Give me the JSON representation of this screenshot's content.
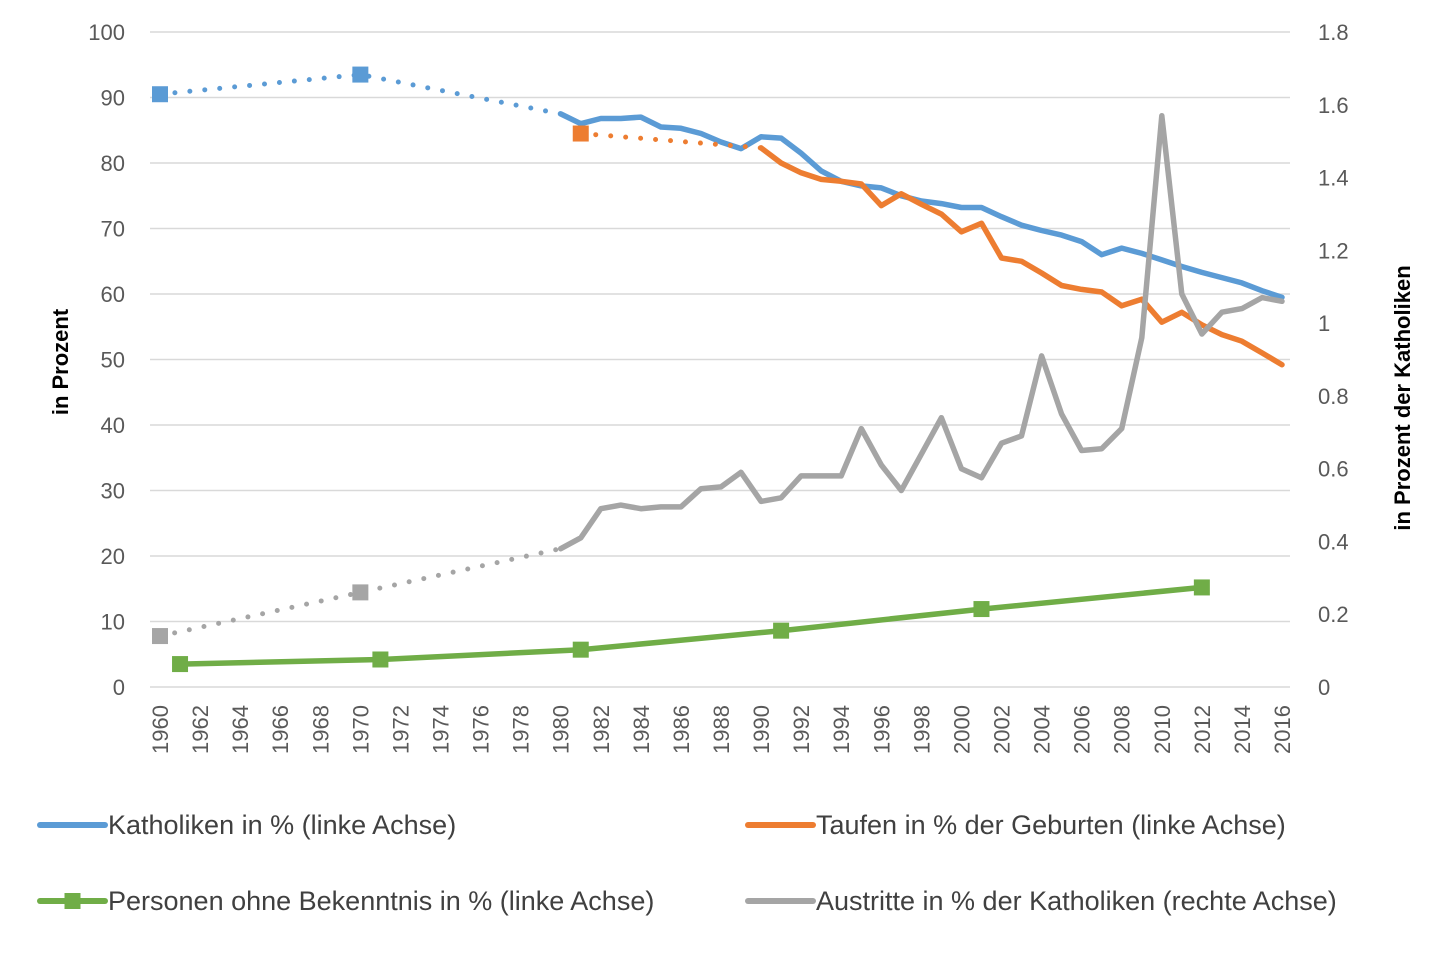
{
  "chart_data": {
    "type": "line",
    "y_left": {
      "label": "in Prozent",
      "range": [
        0,
        100
      ],
      "ticks": [
        0,
        10,
        20,
        30,
        40,
        50,
        60,
        70,
        80,
        90,
        100
      ]
    },
    "y_right": {
      "label": "in Prozent der Katholiken",
      "range": [
        0,
        1.8
      ],
      "ticks": [
        0,
        0.2,
        0.4,
        0.6,
        0.8,
        1,
        1.2,
        1.4,
        1.6,
        1.8
      ],
      "tick_labels": [
        "0",
        "0.2",
        "0.4",
        "0.6",
        "0.8",
        "1",
        "1.2",
        "1.4",
        "1.6",
        "1.8"
      ]
    },
    "x_axis": {
      "range": [
        1960,
        2016
      ],
      "ticks": [
        1960,
        1962,
        1964,
        1966,
        1968,
        1970,
        1972,
        1974,
        1976,
        1978,
        1980,
        1982,
        1984,
        1986,
        1988,
        1990,
        1992,
        1994,
        1996,
        1998,
        2000,
        2002,
        2004,
        2006,
        2008,
        2010,
        2012,
        2014,
        2016
      ]
    },
    "grid": true,
    "legend_position": "bottom",
    "series": [
      {
        "name": "Katholiken in % (linke Achse)",
        "axis": "left",
        "color": "#5b9bd5",
        "style": "line",
        "markers": [
          [
            1960,
            90.5
          ],
          [
            1970,
            93.5
          ]
        ],
        "dotted": [
          [
            1960,
            90.5
          ],
          [
            1970,
            93.5
          ],
          [
            1980,
            87.5
          ]
        ],
        "solid": [
          [
            1980,
            87.5
          ],
          [
            1981,
            86
          ],
          [
            1982,
            86.8
          ],
          [
            1983,
            86.8
          ],
          [
            1984,
            87
          ],
          [
            1985,
            85.5
          ],
          [
            1986,
            85.3
          ],
          [
            1987,
            84.5
          ],
          [
            1988,
            83.2
          ],
          [
            1989,
            82.2
          ],
          [
            1990,
            84
          ],
          [
            1991,
            83.8
          ],
          [
            1992,
            81.5
          ],
          [
            1993,
            78.8
          ],
          [
            1994,
            77.2
          ],
          [
            1995,
            76.5
          ],
          [
            1996,
            76.2
          ],
          [
            1997,
            75
          ],
          [
            1998,
            74.2
          ],
          [
            1999,
            73.8
          ],
          [
            2000,
            73.2
          ],
          [
            2001,
            73.2
          ],
          [
            2002,
            71.8
          ],
          [
            2003,
            70.5
          ],
          [
            2004,
            69.7
          ],
          [
            2005,
            69
          ],
          [
            2006,
            68
          ],
          [
            2007,
            66
          ],
          [
            2008,
            67
          ],
          [
            2009,
            66.2
          ],
          [
            2010,
            65.2
          ],
          [
            2011,
            64.2
          ],
          [
            2012,
            63.3
          ],
          [
            2013,
            62.5
          ],
          [
            2014,
            61.7
          ],
          [
            2015,
            60.5
          ],
          [
            2016,
            59.5
          ]
        ]
      },
      {
        "name": "Taufen in % der Geburten (linke Achse)",
        "axis": "left",
        "color": "#ed7d31",
        "style": "line",
        "markers": [
          [
            1981,
            84.5
          ]
        ],
        "dotted": [
          [
            1981,
            84.5
          ],
          [
            1990,
            82.3
          ]
        ],
        "solid": [
          [
            1990,
            82.3
          ],
          [
            1991,
            80
          ],
          [
            1992,
            78.5
          ],
          [
            1993,
            77.5
          ],
          [
            1994,
            77.2
          ],
          [
            1995,
            76.8
          ],
          [
            1996,
            73.5
          ],
          [
            1997,
            75.3
          ],
          [
            1998,
            73.7
          ],
          [
            1999,
            72.2
          ],
          [
            2000,
            69.5
          ],
          [
            2001,
            70.8
          ],
          [
            2002,
            65.5
          ],
          [
            2003,
            65
          ],
          [
            2004,
            63.2
          ],
          [
            2005,
            61.3
          ],
          [
            2006,
            60.7
          ],
          [
            2007,
            60.3
          ],
          [
            2008,
            58.2
          ],
          [
            2009,
            59.2
          ],
          [
            2010,
            55.7
          ],
          [
            2011,
            57.2
          ],
          [
            2012,
            55.3
          ],
          [
            2013,
            53.8
          ],
          [
            2014,
            52.8
          ],
          [
            2015,
            51
          ],
          [
            2016,
            49.2
          ]
        ]
      },
      {
        "name": "Personen ohne Bekenntnis in % (linke Achse)",
        "axis": "left",
        "color": "#70ad47",
        "style": "line-marker",
        "markers": [
          [
            1961,
            3.5
          ],
          [
            1971,
            4.2
          ],
          [
            1981,
            5.7
          ],
          [
            1991,
            8.6
          ],
          [
            2001,
            11.9
          ],
          [
            2012,
            15.2
          ]
        ],
        "dotted": [],
        "solid": [
          [
            1961,
            3.5
          ],
          [
            1971,
            4.2
          ],
          [
            1981,
            5.7
          ],
          [
            1991,
            8.6
          ],
          [
            2001,
            11.9
          ],
          [
            2012,
            15.2
          ]
        ]
      },
      {
        "name": "Austritte in % der Katholiken (rechte Achse)",
        "axis": "right",
        "color": "#a5a5a5",
        "style": "line",
        "markers": [
          [
            1960,
            0.14
          ],
          [
            1970,
            0.26
          ]
        ],
        "dotted": [
          [
            1960,
            0.14
          ],
          [
            1970,
            0.26
          ],
          [
            1980,
            0.38
          ]
        ],
        "solid": [
          [
            1980,
            0.38
          ],
          [
            1981,
            0.41
          ],
          [
            1982,
            0.49
          ],
          [
            1983,
            0.5
          ],
          [
            1984,
            0.49
          ],
          [
            1985,
            0.495
          ],
          [
            1986,
            0.495
          ],
          [
            1987,
            0.545
          ],
          [
            1988,
            0.55
          ],
          [
            1989,
            0.59
          ],
          [
            1990,
            0.51
          ],
          [
            1991,
            0.52
          ],
          [
            1992,
            0.58
          ],
          [
            1993,
            0.58
          ],
          [
            1994,
            0.58
          ],
          [
            1995,
            0.71
          ],
          [
            1996,
            0.61
          ],
          [
            1997,
            0.54
          ],
          [
            1998,
            0.64
          ],
          [
            1999,
            0.74
          ],
          [
            2000,
            0.6
          ],
          [
            2001,
            0.575
          ],
          [
            2002,
            0.67
          ],
          [
            2003,
            0.69
          ],
          [
            2004,
            0.91
          ],
          [
            2005,
            0.75
          ],
          [
            2006,
            0.65
          ],
          [
            2007,
            0.655
          ],
          [
            2008,
            0.71
          ],
          [
            2009,
            0.96
          ],
          [
            2010,
            1.57
          ],
          [
            2011,
            1.08
          ],
          [
            2012,
            0.97
          ],
          [
            2013,
            1.03
          ],
          [
            2014,
            1.04
          ],
          [
            2015,
            1.07
          ],
          [
            2016,
            1.06
          ]
        ]
      }
    ]
  }
}
